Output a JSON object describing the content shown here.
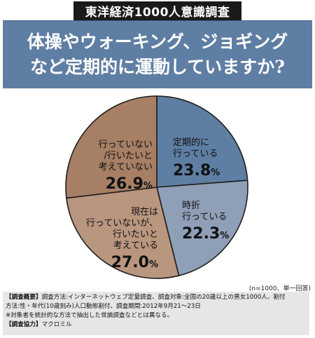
{
  "series_tag": "東洋経済1000人意識調査",
  "headline": {
    "line1": "体操やウォーキング、ジョギング",
    "line2": "など定期的に運動していますか?"
  },
  "chart_data": {
    "type": "pie",
    "unit": "%",
    "slices": [
      {
        "label_lines": [
          "定期的に",
          "行っている"
        ],
        "value": 23.8,
        "color": "#5f7ea3"
      },
      {
        "label_lines": [
          "時折",
          "行っている"
        ],
        "value": 22.3,
        "color": "#8f9fb7"
      },
      {
        "label_lines": [
          "現在は",
          "行っていないが、",
          "行いたいと",
          "考えている"
        ],
        "value": 27.0,
        "color": "#b9967e"
      },
      {
        "label_lines": [
          "行っていない",
          "/行いたいと",
          "考えていない"
        ],
        "value": 26.9,
        "color": "#a67f65"
      }
    ],
    "value_texts": {
      "s0": {
        "num": "23.8",
        "unit": "%"
      },
      "s1": {
        "num": "22.3",
        "unit": "%"
      },
      "s2": {
        "num": "27.0",
        "unit": "%"
      },
      "s3": {
        "num": "26.9",
        "unit": "%"
      }
    },
    "note": "(n=1000、単一回答)"
  },
  "footer": {
    "line1_head": "【調査概要】",
    "line1_text": "調査方法:インターネットウェブ定量調査、調査対象:全国の20歳以上の男女1000人、割付",
    "line2_text": "方法:性・年代(10歳刻み)人口動態割付、調査期間:2012年9月21〜23日",
    "line3_text": "※対象者を統計的な方法で抽出した世論調査などとは異なる。",
    "line4_head": "【調査協力】",
    "line4_text": "マクロミル"
  }
}
